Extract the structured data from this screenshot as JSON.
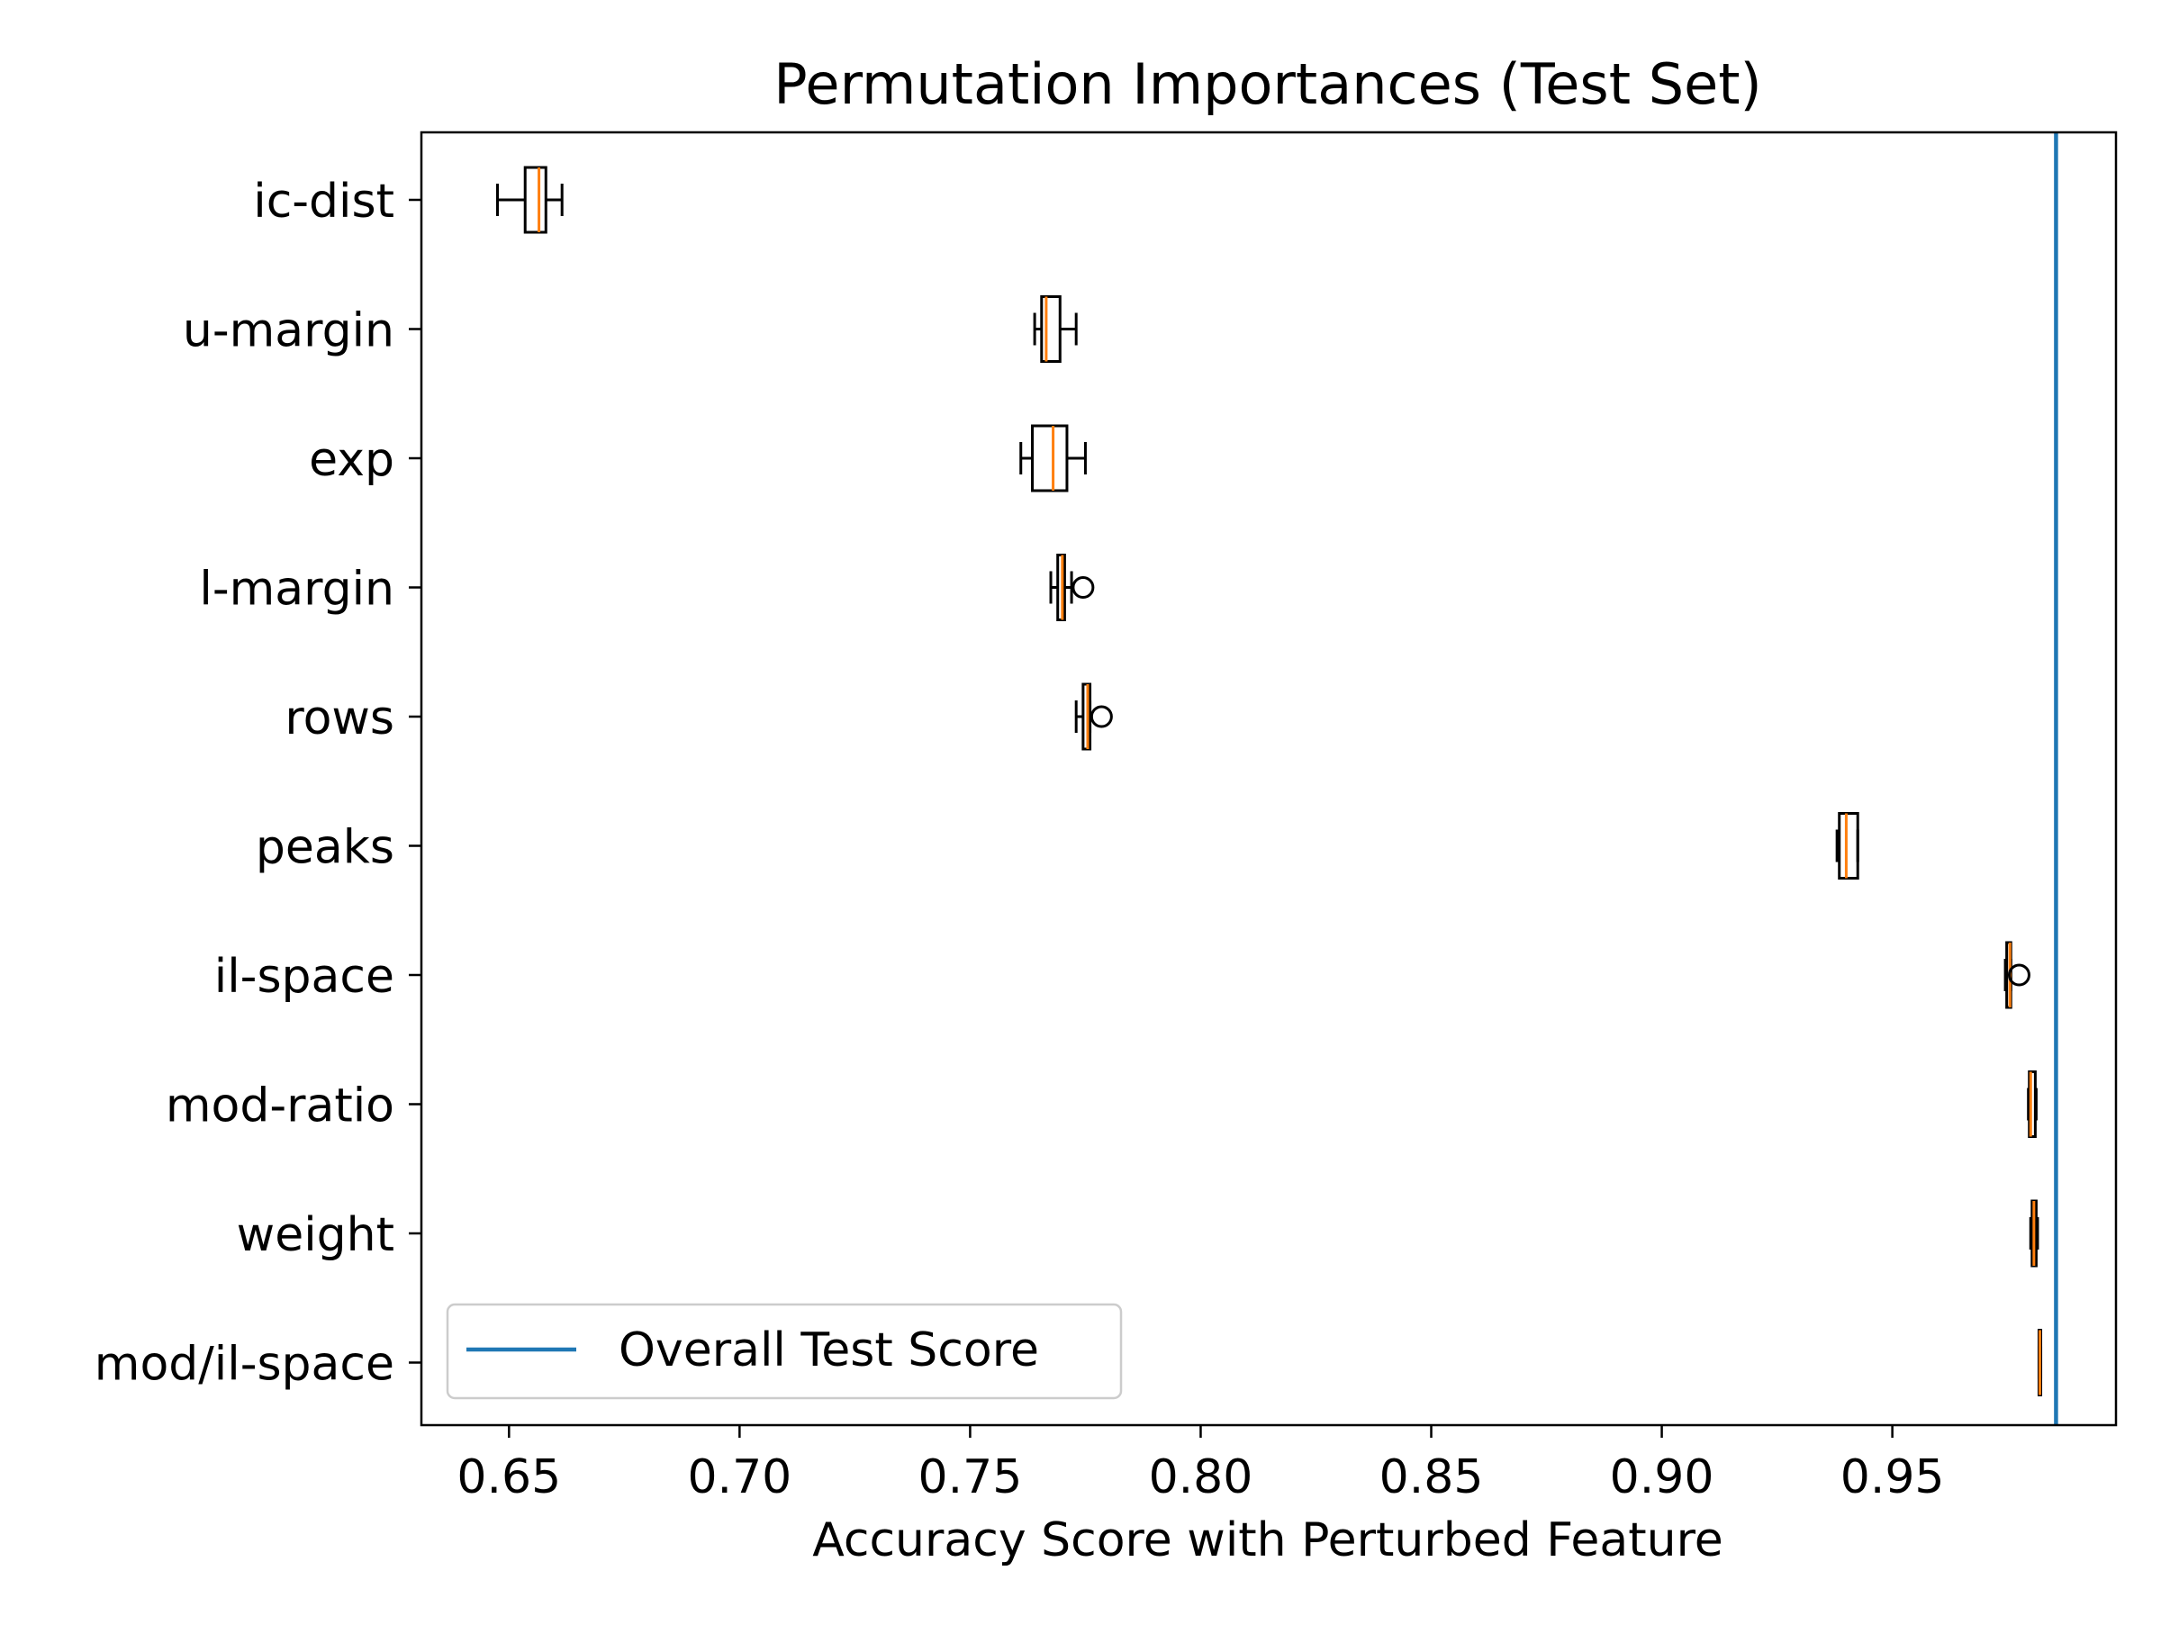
{
  "chart_data": {
    "type": "boxplot",
    "orientation": "horizontal",
    "title": "Permutation Importances (Test Set)",
    "xlabel": "Accuracy Score with Perturbed Feature",
    "ylabel": "",
    "xlim": [
      0.631,
      0.9985
    ],
    "xticks": [
      "0.65",
      "0.70",
      "0.75",
      "0.80",
      "0.85",
      "0.90",
      "0.95"
    ],
    "grid": false,
    "legend": {
      "position": "lower-left",
      "entries": [
        "Overall Test Score"
      ]
    },
    "reference_line": {
      "name": "Overall Test Score",
      "x": 0.9855,
      "color": "#1f77b4"
    },
    "colors": {
      "box": "#000000",
      "median": "#ff7f0e"
    },
    "categories": [
      "ic-dist",
      "u-margin",
      "exp",
      "l-margin",
      "rows",
      "peaks",
      "il-space",
      "mod-ratio",
      "weight",
      "mod/il-space"
    ],
    "boxes": [
      {
        "label": "ic-dist",
        "whislo": 0.6475,
        "q1": 0.6535,
        "med": 0.6565,
        "q3": 0.658,
        "whishi": 0.6615,
        "fliers": []
      },
      {
        "label": "u-margin",
        "whislo": 0.764,
        "q1": 0.7655,
        "med": 0.7665,
        "q3": 0.7695,
        "whishi": 0.773,
        "fliers": []
      },
      {
        "label": "exp",
        "whislo": 0.761,
        "q1": 0.7635,
        "med": 0.768,
        "q3": 0.771,
        "whishi": 0.775,
        "fliers": []
      },
      {
        "label": "l-margin",
        "whislo": 0.7675,
        "q1": 0.769,
        "med": 0.77,
        "q3": 0.7705,
        "whishi": 0.772,
        "fliers": [
          0.7745
        ]
      },
      {
        "label": "rows",
        "whislo": 0.773,
        "q1": 0.7745,
        "med": 0.7755,
        "q3": 0.776,
        "whishi": 0.776,
        "fliers": [
          0.7785
        ]
      },
      {
        "label": "peaks",
        "whislo": 0.938,
        "q1": 0.9385,
        "med": 0.94,
        "q3": 0.9425,
        "whishi": 0.9425,
        "fliers": []
      },
      {
        "label": "il-space",
        "whislo": 0.9745,
        "q1": 0.9748,
        "med": 0.9755,
        "q3": 0.9757,
        "whishi": 0.9757,
        "fliers": [
          0.9775
        ]
      },
      {
        "label": "mod-ratio",
        "whislo": 0.9795,
        "q1": 0.9797,
        "med": 0.98,
        "q3": 0.981,
        "whishi": 0.9812,
        "fliers": []
      },
      {
        "label": "weight",
        "whislo": 0.98,
        "q1": 0.9803,
        "med": 0.9807,
        "q3": 0.9812,
        "whishi": 0.9815,
        "fliers": []
      },
      {
        "label": "mod/il-space",
        "whislo": 0.9818,
        "q1": 0.9818,
        "med": 0.982,
        "q3": 0.9822,
        "whishi": 0.9822,
        "fliers": []
      }
    ]
  }
}
